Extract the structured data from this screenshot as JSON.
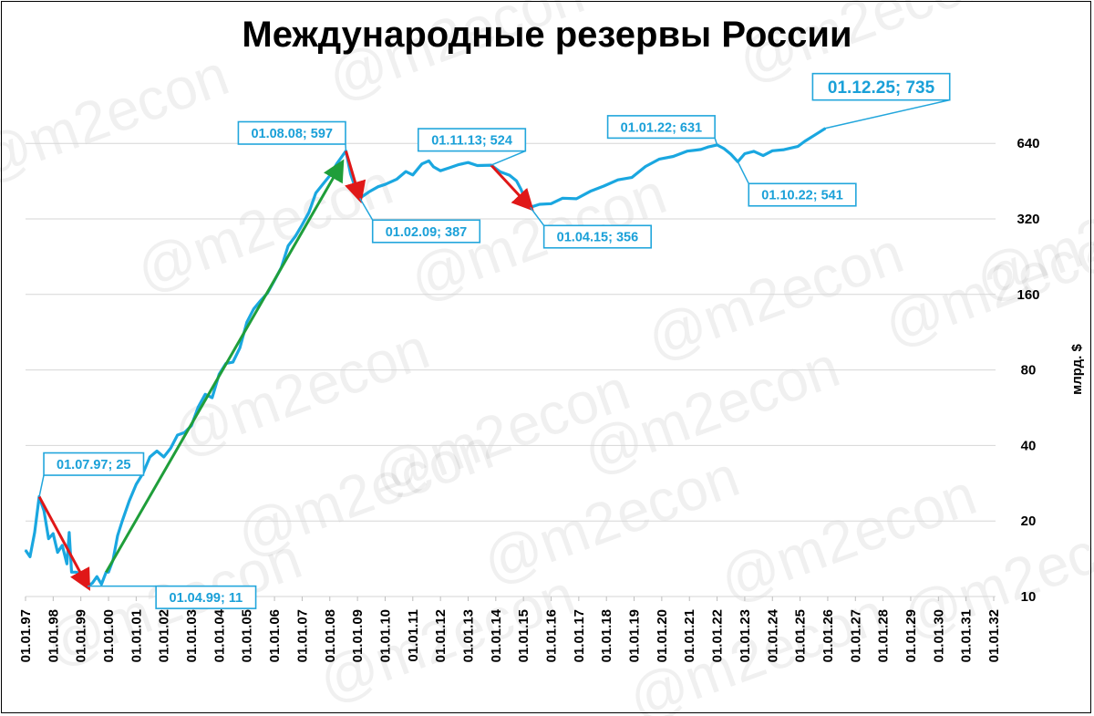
{
  "chart_data": {
    "type": "line",
    "title": "Международные резервы России",
    "ylabel": "млрд. $",
    "y_scale": "log2",
    "ylim": [
      10,
      900
    ],
    "y_ticks": [
      10,
      20,
      40,
      80,
      160,
      320,
      640
    ],
    "xlim": [
      "1997-01-01",
      "2032-01-01"
    ],
    "x_tick_labels": [
      "01.01.97",
      "01.01.98",
      "01.01.99",
      "01.01.00",
      "01.01.01",
      "01.01.02",
      "01.01.03",
      "01.01.04",
      "01.01.05",
      "01.01.06",
      "01.01.07",
      "01.01.08",
      "01.01.09",
      "01.01.10",
      "01.01.11",
      "01.01.12",
      "01.01.13",
      "01.01.14",
      "01.01.15",
      "01.01.16",
      "01.01.17",
      "01.01.18",
      "01.01.19",
      "01.01.20",
      "01.01.21",
      "01.01.22",
      "01.01.23",
      "01.01.24",
      "01.01.25",
      "01.01.26",
      "01.01.27",
      "01.01.28",
      "01.01.29",
      "01.01.30",
      "01.01.31",
      "01.01.32"
    ],
    "grid": true,
    "line_color": "#1aa7e0",
    "series": [
      {
        "points": [
          [
            "1997-01-01",
            15.3
          ],
          [
            "1997-03-01",
            14.4
          ],
          [
            "1997-05-01",
            18
          ],
          [
            "1997-07-01",
            25
          ],
          [
            "1997-09-01",
            22
          ],
          [
            "1997-11-01",
            17
          ],
          [
            "1998-01-01",
            17.8
          ],
          [
            "1998-03-01",
            15
          ],
          [
            "1998-05-01",
            16
          ],
          [
            "1998-07-01",
            13.5
          ],
          [
            "1998-08-01",
            18
          ],
          [
            "1998-09-01",
            12.5
          ],
          [
            "1998-11-01",
            12.5
          ],
          [
            "1999-01-01",
            12.2
          ],
          [
            "1999-04-01",
            11
          ],
          [
            "1999-06-01",
            11.3
          ],
          [
            "1999-08-01",
            12
          ],
          [
            "1999-10-01",
            11.2
          ],
          [
            "1999-12-01",
            12.5
          ],
          [
            "2000-01-01",
            12.5
          ],
          [
            "2000-03-01",
            14
          ],
          [
            "2000-05-01",
            17.5
          ],
          [
            "2000-07-01",
            20
          ],
          [
            "2000-10-01",
            24
          ],
          [
            "2001-01-01",
            28
          ],
          [
            "2001-04-01",
            31
          ],
          [
            "2001-07-01",
            36
          ],
          [
            "2001-10-01",
            38
          ],
          [
            "2002-01-01",
            36
          ],
          [
            "2002-04-01",
            39
          ],
          [
            "2002-07-01",
            44
          ],
          [
            "2002-10-01",
            45
          ],
          [
            "2003-01-01",
            48
          ],
          [
            "2003-04-01",
            57
          ],
          [
            "2003-07-01",
            64
          ],
          [
            "2003-10-01",
            62
          ],
          [
            "2004-01-01",
            77
          ],
          [
            "2004-04-01",
            85
          ],
          [
            "2004-07-01",
            86
          ],
          [
            "2004-10-01",
            98
          ],
          [
            "2005-01-01",
            124
          ],
          [
            "2005-04-01",
            140
          ],
          [
            "2005-07-01",
            151
          ],
          [
            "2005-10-01",
            162
          ],
          [
            "2006-01-01",
            182
          ],
          [
            "2006-04-01",
            205
          ],
          [
            "2006-07-01",
            250
          ],
          [
            "2006-10-01",
            272
          ],
          [
            "2007-01-01",
            303
          ],
          [
            "2007-04-01",
            340
          ],
          [
            "2007-07-01",
            406
          ],
          [
            "2007-10-01",
            440
          ],
          [
            "2008-01-01",
            476
          ],
          [
            "2008-04-01",
            530
          ],
          [
            "2008-08-01",
            597
          ],
          [
            "2008-10-01",
            484
          ],
          [
            "2008-12-01",
            427
          ],
          [
            "2009-02-01",
            387
          ],
          [
            "2009-06-01",
            410
          ],
          [
            "2009-10-01",
            430
          ],
          [
            "2010-01-01",
            439
          ],
          [
            "2010-06-01",
            460
          ],
          [
            "2010-10-01",
            494
          ],
          [
            "2011-01-01",
            479
          ],
          [
            "2011-05-01",
            530
          ],
          [
            "2011-08-01",
            545
          ],
          [
            "2011-10-01",
            516
          ],
          [
            "2012-01-01",
            498
          ],
          [
            "2012-05-01",
            512
          ],
          [
            "2012-09-01",
            527
          ],
          [
            "2013-01-01",
            537
          ],
          [
            "2013-05-01",
            522
          ],
          [
            "2013-11-01",
            524
          ],
          [
            "2014-03-01",
            493
          ],
          [
            "2014-07-01",
            478
          ],
          [
            "2014-10-01",
            454
          ],
          [
            "2014-12-01",
            419
          ],
          [
            "2015-02-01",
            376
          ],
          [
            "2015-04-01",
            356
          ],
          [
            "2015-08-01",
            366
          ],
          [
            "2016-01-01",
            368
          ],
          [
            "2016-06-01",
            387
          ],
          [
            "2016-12-01",
            385
          ],
          [
            "2017-06-01",
            412
          ],
          [
            "2017-12-01",
            433
          ],
          [
            "2018-06-01",
            458
          ],
          [
            "2018-12-01",
            468
          ],
          [
            "2019-06-01",
            518
          ],
          [
            "2019-12-01",
            554
          ],
          [
            "2020-06-01",
            568
          ],
          [
            "2020-12-01",
            596
          ],
          [
            "2021-06-01",
            605
          ],
          [
            "2021-09-01",
            619
          ],
          [
            "2022-01-01",
            631
          ],
          [
            "2022-04-01",
            610
          ],
          [
            "2022-07-01",
            580
          ],
          [
            "2022-10-01",
            541
          ],
          [
            "2023-01-01",
            582
          ],
          [
            "2023-05-01",
            595
          ],
          [
            "2023-09-01",
            572
          ],
          [
            "2024-01-01",
            598
          ],
          [
            "2024-06-01",
            604
          ],
          [
            "2024-12-01",
            622
          ],
          [
            "2025-03-01",
            652
          ],
          [
            "2025-07-01",
            687
          ],
          [
            "2025-12-01",
            735
          ]
        ]
      }
    ],
    "annotations": [
      {
        "label": "01.07.97; 25",
        "date": "1997-07-01",
        "value": 25
      },
      {
        "label": "01.04.99; 11",
        "date": "1999-04-01",
        "value": 11
      },
      {
        "label": "01.08.08; 597",
        "date": "2008-08-01",
        "value": 597
      },
      {
        "label": "01.02.09; 387",
        "date": "2009-02-01",
        "value": 387
      },
      {
        "label": "01.11.13; 524",
        "date": "2013-11-01",
        "value": 524
      },
      {
        "label": "01.04.15; 356",
        "date": "2015-04-01",
        "value": 356
      },
      {
        "label": "01.01.22; 631",
        "date": "2022-01-01",
        "value": 631
      },
      {
        "label": "01.10.22; 541",
        "date": "2022-10-01",
        "value": 541
      },
      {
        "label": "01.12.25; 735",
        "date": "2025-12-01",
        "value": 735
      }
    ],
    "trend_arrows": [
      {
        "from": [
          "1997-07-01",
          25
        ],
        "to": [
          "1999-04-01",
          11
        ],
        "color": "#e01818"
      },
      {
        "from": [
          "1999-12-01",
          12.5
        ],
        "to": [
          "2008-06-01",
          530
        ],
        "color": "#1f9e3a"
      },
      {
        "from": [
          "2008-08-01",
          597
        ],
        "to": [
          "2009-02-01",
          387
        ],
        "color": "#e01818"
      },
      {
        "from": [
          "2013-11-01",
          524
        ],
        "to": [
          "2015-04-01",
          356
        ],
        "color": "#e01818"
      }
    ],
    "watermark": "@m2econ"
  }
}
